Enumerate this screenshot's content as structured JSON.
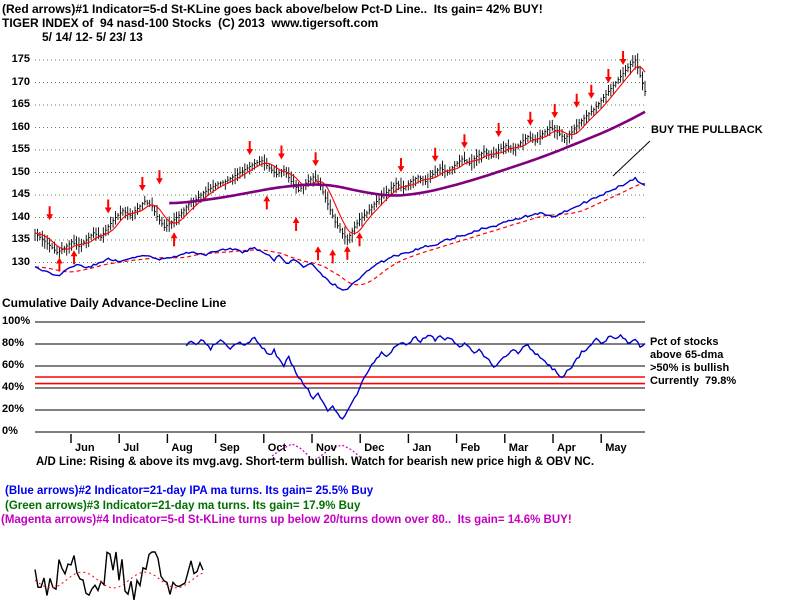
{
  "header": {
    "signal_line": "(Red arrows)#1 Indicator=5-d St-KLine goes back above/below Pct-D Line..  Its gain= 42% BUY!",
    "title": "TIGER INDEX of  94 nasd-100 Stocks  (C) 2013  www.tigersoft.com",
    "date_range": "5/ 14/ 12- 5/ 23/ 13"
  },
  "annotations": {
    "buy_pullback": "BUY THE PULLBACK",
    "ad_label": "Cumulative Daily Advance-Decline Line",
    "pct_notes": [
      "Pct of stocks",
      "above 65-dma",
      ">50% is bullish",
      "Currently  79.8%"
    ]
  },
  "footer": {
    "ad_note": "A/D Line: Rising & above its mvg.avg. Short-term bullish. Watch for bearish new price high & OBV NC.",
    "blue_note": "(Blue arrows)#2 Indicator=21-day IPA ma turns. Its gain= 25.5% Buy",
    "green_note": "(Green arrows)#3 Indicator=21-day ma turns. Its gain= 17.9% Buy",
    "magenta_note": "(Magenta arrows)#4 Indicator=5-d St-KLine turns up below 20/turns down over 80..  Its gain= 14.6% BUY!"
  },
  "colors": {
    "bars": "#000000",
    "fast_ma": "#ff0000",
    "slow_ma": "#800080",
    "ad_line": "#0000cc",
    "ad_ma": "#ff0000",
    "pct_line": "#0000cc",
    "threshold": "#ff0000",
    "grid": "#4f8a4f",
    "arrow": "#ff0000"
  },
  "chart_data": [
    {
      "type": "candlestick",
      "name": "TIGER INDEX of 94 nasd-100 Stocks",
      "date_range": "5/14/12 - 5/23/13",
      "ylim": [
        123,
        177
      ],
      "yticks": [
        175,
        170,
        165,
        160,
        155,
        150,
        145,
        140,
        135,
        130
      ],
      "x_months": [
        "Jun",
        "Jul",
        "Aug",
        "Sep",
        "Oct",
        "Nov",
        "Dec",
        "Jan",
        "Feb",
        "Mar",
        "Apr",
        "May"
      ],
      "grid": "dotted",
      "days": 250,
      "price_anchors": [
        [
          0,
          136.5
        ],
        [
          3,
          135.2
        ],
        [
          6,
          133.8
        ],
        [
          9,
          132.2
        ],
        [
          12,
          133.2
        ],
        [
          15,
          134.6
        ],
        [
          18,
          133.6
        ],
        [
          21,
          135
        ],
        [
          24,
          136.6
        ],
        [
          27,
          135.6
        ],
        [
          30,
          138
        ],
        [
          33,
          140
        ],
        [
          36,
          141.5
        ],
        [
          39,
          140.5
        ],
        [
          42,
          142
        ],
        [
          45,
          143.6
        ],
        [
          48,
          142.4
        ],
        [
          50,
          140.2
        ],
        [
          53,
          137.8
        ],
        [
          56,
          139
        ],
        [
          60,
          141
        ],
        [
          63,
          143
        ],
        [
          66,
          144
        ],
        [
          69,
          145.5
        ],
        [
          72,
          146.5
        ],
        [
          75,
          147.5
        ],
        [
          78,
          148
        ],
        [
          81,
          149
        ],
        [
          84,
          150
        ],
        [
          87,
          151
        ],
        [
          90,
          152
        ],
        [
          93,
          152.6
        ],
        [
          96,
          151
        ],
        [
          99,
          149.6
        ],
        [
          102,
          150.6
        ],
        [
          105,
          148
        ],
        [
          108,
          146
        ],
        [
          111,
          147.6
        ],
        [
          114,
          149
        ],
        [
          117,
          147
        ],
        [
          120,
          143
        ],
        [
          123,
          139
        ],
        [
          126,
          136.4
        ],
        [
          128,
          135
        ],
        [
          130,
          137
        ],
        [
          133,
          139.6
        ],
        [
          136,
          141
        ],
        [
          139,
          143
        ],
        [
          142,
          144.6
        ],
        [
          145,
          146
        ],
        [
          148,
          147.6
        ],
        [
          151,
          146.4
        ],
        [
          154,
          148
        ],
        [
          157,
          149
        ],
        [
          160,
          148
        ],
        [
          163,
          149.6
        ],
        [
          166,
          151
        ],
        [
          169,
          150
        ],
        [
          172,
          151.6
        ],
        [
          175,
          153
        ],
        [
          178,
          152
        ],
        [
          181,
          153.6
        ],
        [
          184,
          154.6
        ],
        [
          187,
          153.6
        ],
        [
          190,
          155
        ],
        [
          193,
          156
        ],
        [
          196,
          155
        ],
        [
          199,
          156.6
        ],
        [
          202,
          158
        ],
        [
          205,
          157
        ],
        [
          208,
          158.6
        ],
        [
          211,
          160
        ],
        [
          214,
          159
        ],
        [
          217,
          157.6
        ],
        [
          220,
          159
        ],
        [
          223,
          161
        ],
        [
          226,
          162.6
        ],
        [
          229,
          164
        ],
        [
          232,
          166
        ],
        [
          235,
          168
        ],
        [
          238,
          170
        ],
        [
          241,
          172
        ],
        [
          244,
          174
        ],
        [
          246,
          175
        ],
        [
          248,
          171.5
        ],
        [
          250,
          168
        ]
      ],
      "slow_ma_anchors": [
        [
          55,
          143.2
        ],
        [
          65,
          143.8
        ],
        [
          75,
          144.6
        ],
        [
          85,
          145.6
        ],
        [
          95,
          146.6
        ],
        [
          105,
          147.2
        ],
        [
          112,
          147.4
        ],
        [
          120,
          147
        ],
        [
          128,
          146
        ],
        [
          136,
          145.2
        ],
        [
          144,
          144.8
        ],
        [
          152,
          145.2
        ],
        [
          160,
          146
        ],
        [
          170,
          147.4
        ],
        [
          180,
          149
        ],
        [
          190,
          150.8
        ],
        [
          200,
          152.6
        ],
        [
          210,
          154.6
        ],
        [
          220,
          156.8
        ],
        [
          230,
          159
        ],
        [
          240,
          161.6
        ],
        [
          250,
          164.5
        ]
      ],
      "ad_anchors": [
        [
          0,
          129
        ],
        [
          5,
          127.8
        ],
        [
          10,
          127.2
        ],
        [
          14,
          128.6
        ],
        [
          18,
          129.6
        ],
        [
          22,
          128.8
        ],
        [
          26,
          130
        ],
        [
          30,
          130.8
        ],
        [
          35,
          130
        ],
        [
          40,
          131
        ],
        [
          45,
          131.6
        ],
        [
          50,
          130.6
        ],
        [
          55,
          131
        ],
        [
          60,
          131.8
        ],
        [
          65,
          132.4
        ],
        [
          70,
          131.8
        ],
        [
          75,
          132.6
        ],
        [
          80,
          133
        ],
        [
          85,
          132.4
        ],
        [
          90,
          133.2
        ],
        [
          95,
          132
        ],
        [
          98,
          130.6
        ],
        [
          100,
          131.6
        ],
        [
          103,
          129.6
        ],
        [
          106,
          130.6
        ],
        [
          110,
          129
        ],
        [
          113,
          130
        ],
        [
          116,
          128
        ],
        [
          120,
          126
        ],
        [
          124,
          124.6
        ],
        [
          127,
          123.8
        ],
        [
          130,
          125
        ],
        [
          133,
          126.6
        ],
        [
          136,
          128
        ],
        [
          140,
          129.6
        ],
        [
          144,
          130.6
        ],
        [
          148,
          131.6
        ],
        [
          152,
          132
        ],
        [
          156,
          132.8
        ],
        [
          160,
          133.6
        ],
        [
          164,
          134
        ],
        [
          168,
          134.8
        ],
        [
          172,
          135.6
        ],
        [
          176,
          136
        ],
        [
          180,
          136.8
        ],
        [
          184,
          137.6
        ],
        [
          188,
          138
        ],
        [
          192,
          138.8
        ],
        [
          196,
          139.6
        ],
        [
          200,
          140
        ],
        [
          204,
          140.8
        ],
        [
          208,
          141
        ],
        [
          212,
          140.2
        ],
        [
          216,
          141
        ],
        [
          220,
          142
        ],
        [
          224,
          143
        ],
        [
          228,
          144
        ],
        [
          232,
          145
        ],
        [
          236,
          146
        ],
        [
          240,
          147
        ],
        [
          243,
          148
        ],
        [
          246,
          148.8
        ],
        [
          248,
          147.8
        ],
        [
          250,
          147.2
        ]
      ],
      "down_arrows": [
        [
          6,
          138.5
        ],
        [
          30,
          140
        ],
        [
          44,
          145
        ],
        [
          51,
          146.5
        ],
        [
          88,
          153
        ],
        [
          101,
          152
        ],
        [
          115,
          150.5
        ],
        [
          150,
          149.2
        ],
        [
          164,
          151.5
        ],
        [
          176,
          154.5
        ],
        [
          190,
          157
        ],
        [
          203,
          159.5
        ],
        [
          213,
          161.2
        ],
        [
          222,
          163.5
        ],
        [
          228,
          165.5
        ],
        [
          235,
          169
        ],
        [
          241,
          173
        ]
      ],
      "up_arrows": [
        [
          10,
          132
        ],
        [
          16,
          133.6
        ],
        [
          57,
          137.6
        ],
        [
          95,
          145.8
        ],
        [
          107,
          141
        ],
        [
          116,
          134.5
        ],
        [
          122,
          133.8
        ],
        [
          128,
          134.6
        ],
        [
          133,
          137.6
        ]
      ],
      "annotation": "BUY THE PULLBACK"
    },
    {
      "type": "line",
      "name": "Pct of stocks above 65-dma",
      "ylim": [
        0,
        100
      ],
      "ytick_labels": [
        "100%",
        "80%",
        "60%",
        "40%",
        "20%",
        "0%"
      ],
      "ytick_values": [
        100,
        80,
        60,
        40,
        20,
        0
      ],
      "threshold_lines": [
        50,
        44
      ],
      "bullish_above": 50,
      "current_value": 79.8,
      "points": [
        [
          62,
          78
        ],
        [
          64,
          82
        ],
        [
          66,
          79
        ],
        [
          68,
          84
        ],
        [
          70,
          80
        ],
        [
          72,
          76
        ],
        [
          74,
          81
        ],
        [
          76,
          85
        ],
        [
          78,
          80
        ],
        [
          80,
          76
        ],
        [
          82,
          80
        ],
        [
          84,
          83
        ],
        [
          86,
          79
        ],
        [
          88,
          82
        ],
        [
          90,
          85
        ],
        [
          92,
          80
        ],
        [
          94,
          75
        ],
        [
          96,
          70
        ],
        [
          98,
          74
        ],
        [
          100,
          66
        ],
        [
          102,
          60
        ],
        [
          104,
          68
        ],
        [
          106,
          58
        ],
        [
          108,
          50
        ],
        [
          110,
          44
        ],
        [
          112,
          38
        ],
        [
          114,
          30
        ],
        [
          116,
          35
        ],
        [
          118,
          26
        ],
        [
          120,
          20
        ],
        [
          122,
          24
        ],
        [
          124,
          16
        ],
        [
          126,
          13
        ],
        [
          128,
          18
        ],
        [
          130,
          26
        ],
        [
          132,
          35
        ],
        [
          134,
          45
        ],
        [
          136,
          52
        ],
        [
          138,
          60
        ],
        [
          140,
          66
        ],
        [
          142,
          72
        ],
        [
          144,
          68
        ],
        [
          146,
          74
        ],
        [
          148,
          78
        ],
        [
          150,
          82
        ],
        [
          152,
          78
        ],
        [
          154,
          83
        ],
        [
          156,
          86
        ],
        [
          158,
          82
        ],
        [
          160,
          86
        ],
        [
          162,
          88
        ],
        [
          164,
          84
        ],
        [
          166,
          87
        ],
        [
          168,
          83
        ],
        [
          170,
          86
        ],
        [
          172,
          82
        ],
        [
          174,
          78
        ],
        [
          176,
          81
        ],
        [
          178,
          76
        ],
        [
          180,
          72
        ],
        [
          182,
          76
        ],
        [
          184,
          70
        ],
        [
          186,
          65
        ],
        [
          188,
          60
        ],
        [
          190,
          63
        ],
        [
          192,
          68
        ],
        [
          194,
          72
        ],
        [
          196,
          76
        ],
        [
          198,
          72
        ],
        [
          200,
          76
        ],
        [
          202,
          79
        ],
        [
          204,
          74
        ],
        [
          206,
          70
        ],
        [
          208,
          66
        ],
        [
          210,
          62
        ],
        [
          212,
          58
        ],
        [
          214,
          54
        ],
        [
          216,
          50
        ],
        [
          218,
          55
        ],
        [
          220,
          60
        ],
        [
          222,
          66
        ],
        [
          224,
          72
        ],
        [
          226,
          76
        ],
        [
          228,
          80
        ],
        [
          230,
          84
        ],
        [
          232,
          80
        ],
        [
          234,
          84
        ],
        [
          236,
          87
        ],
        [
          238,
          84
        ],
        [
          240,
          87
        ],
        [
          242,
          84
        ],
        [
          244,
          80
        ],
        [
          246,
          84
        ],
        [
          248,
          78
        ],
        [
          250,
          79.8
        ]
      ]
    }
  ]
}
